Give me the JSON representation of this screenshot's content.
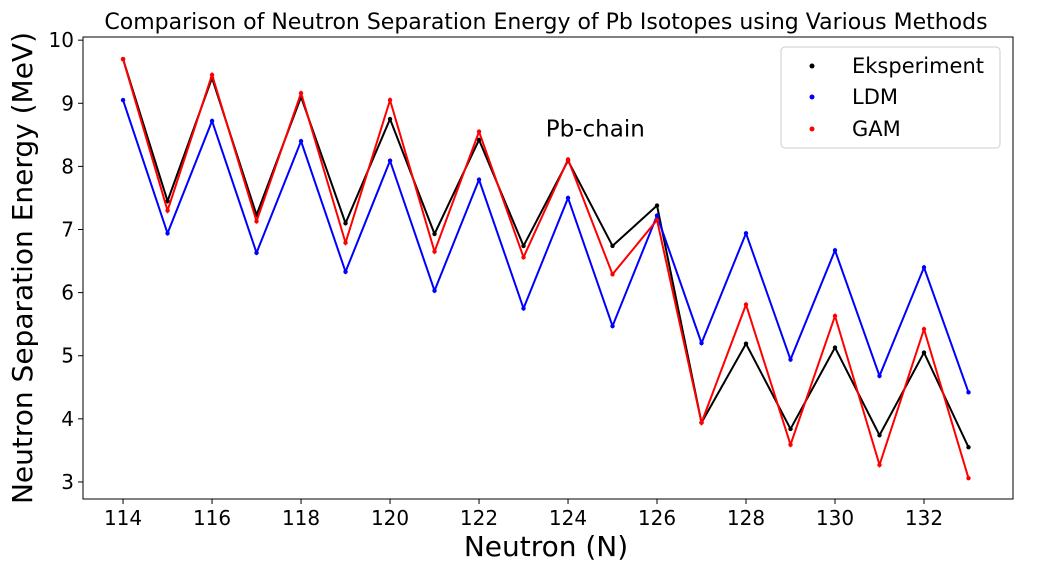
{
  "chart_data": {
    "type": "line",
    "title": "Comparison of Neutron Separation Energy of Pb Isotopes using Various Methods",
    "xlabel": "Neutron (N)",
    "ylabel": "Neutron Separation Energy (MeV)",
    "xlim": [
      113.1,
      134.0
    ],
    "ylim": [
      2.73,
      10.05
    ],
    "xticks": [
      114,
      116,
      118,
      120,
      122,
      124,
      126,
      128,
      130,
      132
    ],
    "yticks": [
      3,
      4,
      5,
      6,
      7,
      8,
      9,
      10
    ],
    "annotation": {
      "text": "Pb-chain",
      "x": 123.5,
      "y": 8.6
    },
    "legend_position": "top-right",
    "x": [
      114,
      115,
      116,
      117,
      118,
      119,
      120,
      121,
      122,
      123,
      124,
      125,
      126,
      127,
      128,
      129,
      130,
      131,
      132,
      133
    ],
    "series": [
      {
        "name": "Eksperiment",
        "color": "#000000",
        "values": [
          9.7,
          7.45,
          9.4,
          7.23,
          9.1,
          7.1,
          8.75,
          6.93,
          8.42,
          6.74,
          8.09,
          6.74,
          7.38,
          3.94,
          5.19,
          3.84,
          5.13,
          3.74,
          5.05,
          3.55
        ]
      },
      {
        "name": "LDM",
        "color": "#0000ff",
        "values": [
          9.05,
          6.94,
          8.72,
          6.63,
          8.4,
          6.33,
          8.09,
          6.03,
          7.79,
          5.75,
          7.5,
          5.47,
          7.22,
          5.2,
          6.94,
          4.94,
          6.67,
          4.68,
          6.4,
          4.42
        ]
      },
      {
        "name": "GAM",
        "color": "#ff0000",
        "values": [
          9.7,
          7.3,
          9.45,
          7.13,
          9.16,
          6.79,
          9.05,
          6.65,
          8.55,
          6.56,
          8.11,
          6.29,
          7.15,
          3.94,
          5.81,
          3.59,
          5.63,
          3.27,
          5.42,
          3.06
        ]
      }
    ]
  }
}
